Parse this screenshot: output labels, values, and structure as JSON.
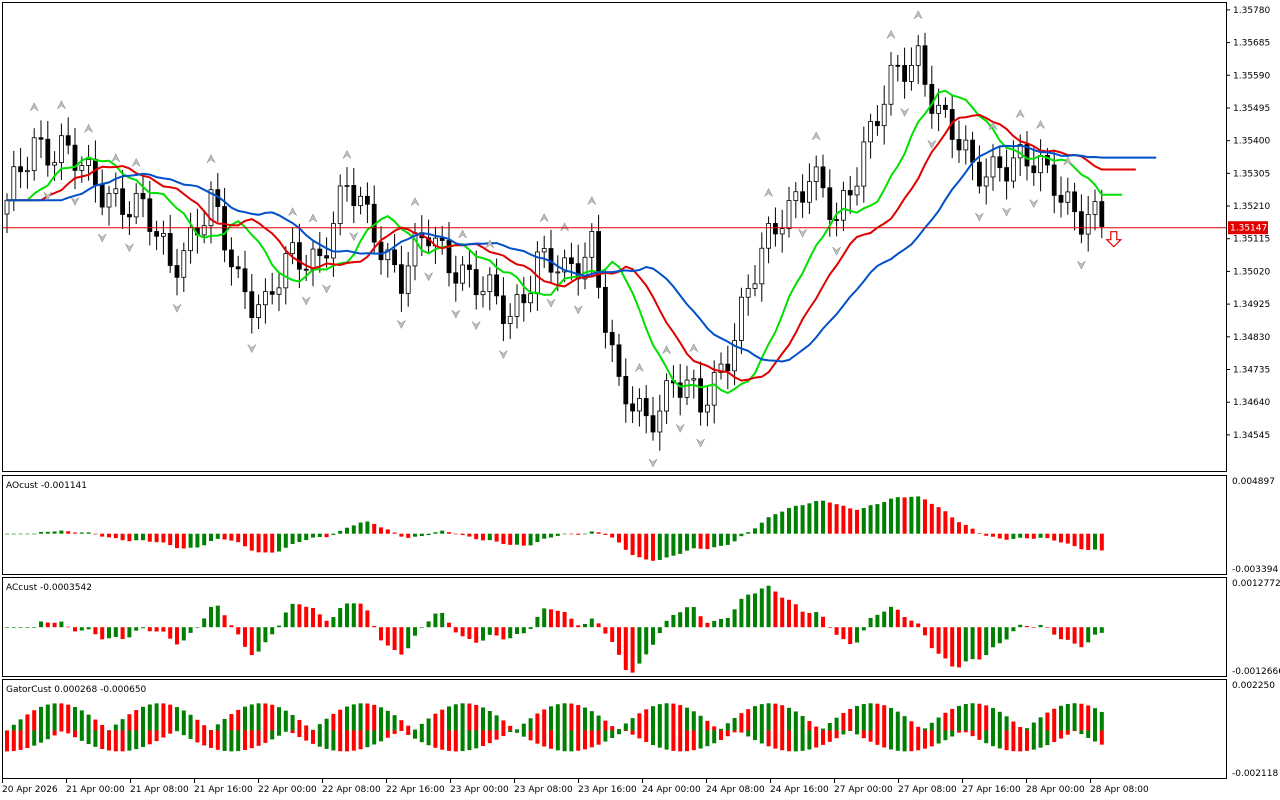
{
  "chart_data": {
    "type": "candlestick",
    "main_panel": {
      "price_axis_labels": [
        "1.35780",
        "1.35685",
        "1.35590",
        "1.35495",
        "1.35400",
        "1.35305",
        "1.35210",
        "1.35115",
        "1.35020",
        "1.34925",
        "1.34830",
        "1.34735",
        "1.34640",
        "1.34545"
      ],
      "ylim": [
        1.3444,
        1.358
      ],
      "current_price_label": "1.35147",
      "current_price": 1.35147,
      "current_price_color": "#e00000",
      "ma_colors": {
        "fast": "#00e000",
        "mid": "#e00000",
        "slow": "#0050c8"
      },
      "sell_arrow_color": "#e00000"
    },
    "time_axis_labels": [
      "20 Apr 2026",
      "21 Apr 00:00",
      "21 Apr 08:00",
      "21 Apr 16:00",
      "22 Apr 00:00",
      "22 Apr 08:00",
      "22 Apr 16:00",
      "23 Apr 00:00",
      "23 Apr 08:00",
      "23 Apr 16:00",
      "24 Apr 00:00",
      "24 Apr 08:00",
      "24 Apr 16:00",
      "27 Apr 00:00",
      "27 Apr 08:00",
      "27 Apr 16:00",
      "28 Apr 00:00",
      "28 Apr 08:00"
    ],
    "indicators": [
      {
        "name": "AOcust",
        "label": "AOcust -0.001141",
        "max_label": "0.004897",
        "min_label": "-0.003394",
        "ylim": [
          -0.003394,
          0.004897
        ],
        "up_color": "#008000",
        "down_color": "#ff0000"
      },
      {
        "name": "ACcust",
        "label": "ACcust -0.0003542",
        "max_label": "0.0012772",
        "min_label": "-0.0012666",
        "ylim": [
          -0.0012666,
          0.0012772
        ],
        "up_color": "#008000",
        "down_color": "#ff0000"
      },
      {
        "name": "GatorCust",
        "label": "GatorCust 0.000268 -0.000650",
        "max_label": "0.002250",
        "min_label": "-0.002118",
        "ylim": [
          -0.002118,
          0.00225
        ],
        "up_color": "#008000",
        "down_color": "#ff0000"
      }
    ]
  }
}
